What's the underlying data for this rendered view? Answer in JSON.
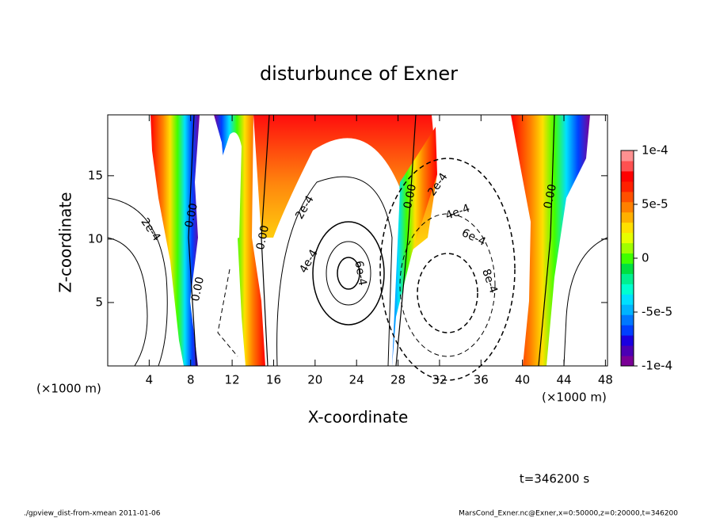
{
  "chart_data": {
    "type": "contour",
    "title": "disturbunce of Exner",
    "xlabel": "X-coordinate",
    "ylabel": "Z-coordinate",
    "x_unit": "(×1000 m)",
    "xlim": [
      0,
      48.2
    ],
    "xticks": [
      4,
      8,
      12,
      16,
      20,
      24,
      28,
      32,
      36,
      40,
      44,
      48
    ],
    "ylim": [
      0,
      19.8
    ],
    "yticks": [
      5,
      10,
      15
    ],
    "colorbar": {
      "lim": [
        -0.0001,
        0.0001
      ],
      "ticks": [
        {
          "value": 0.0001,
          "label": "1e-4"
        },
        {
          "value": 5e-05,
          "label": "5e-5"
        },
        0,
        {
          "value": -5e-05,
          "label": "-5e-5"
        },
        {
          "value": -0.0001,
          "label": "-1e-4"
        }
      ],
      "colors": [
        "#7a0096",
        "#4b00b4",
        "#1a00e0",
        "#0040ff",
        "#0078ff",
        "#00b4ff",
        "#00e0ff",
        "#00ffd0",
        "#00f090",
        "#00e040",
        "#40ff00",
        "#a0ff00",
        "#e6ff00",
        "#ffe000",
        "#ffb000",
        "#ff8000",
        "#ff5000",
        "#ff2000",
        "#ff0000",
        "#ff5050",
        "#ff9090"
      ]
    },
    "contour_labels": [
      "0.00",
      "0.00",
      "0.00",
      "0.00",
      "0.00",
      "2e-4",
      "2e-4",
      "4e-4",
      "6e-4",
      "2e-4",
      "4e-4",
      "6e-4",
      "8e-4"
    ],
    "time_label": "t=346200 s",
    "footer_left": "./gpview_dist-from-xmean  2011-01-06",
    "footer_right": "MarsCond_Exner.nc@Exner,x=0:50000,z=0:20000,t=346200"
  }
}
